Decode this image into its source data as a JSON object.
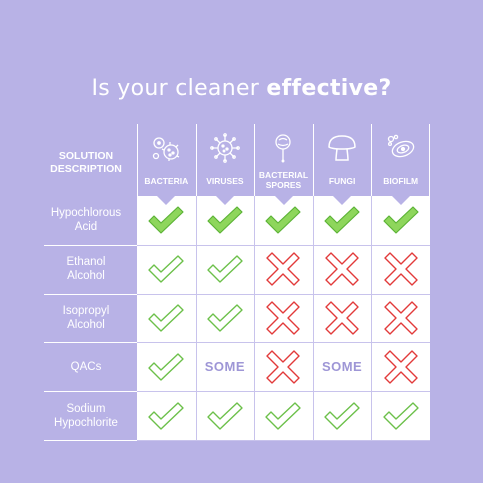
{
  "title": {
    "part1": "Is your cleaner ",
    "part2": "effective?"
  },
  "header": {
    "row_header_line1": "SOLUTION",
    "row_header_line2": "DESCRIPTION",
    "columns": [
      {
        "label1": "BACTERIA",
        "label2": "",
        "icon": "bacteria-icon"
      },
      {
        "label1": "VIRUSES",
        "label2": "",
        "icon": "virus-icon"
      },
      {
        "label1": "BACTERIAL",
        "label2": "SPORES",
        "icon": "spore-icon"
      },
      {
        "label1": "FUNGI",
        "label2": "",
        "icon": "mushroom-icon"
      },
      {
        "label1": "BIOFILM",
        "label2": "",
        "icon": "biofilm-icon"
      }
    ]
  },
  "rows": [
    {
      "line1": "Hypochlorous",
      "line2": "Acid",
      "cells": [
        "check-filled",
        "check-filled",
        "check-filled",
        "check-filled",
        "check-filled"
      ]
    },
    {
      "line1": "Ethanol",
      "line2": "Alcohol",
      "cells": [
        "check",
        "check",
        "cross",
        "cross",
        "cross"
      ]
    },
    {
      "line1": "Isopropyl",
      "line2": "Alcohol",
      "cells": [
        "check",
        "check",
        "cross",
        "cross",
        "cross"
      ]
    },
    {
      "line1": "QACs",
      "line2": "",
      "cells": [
        "check",
        "SOME",
        "cross",
        "SOME",
        "cross"
      ]
    },
    {
      "line1": "Sodium",
      "line2": "Hypochlorite",
      "cells": [
        "check",
        "check",
        "check",
        "check",
        "check"
      ]
    }
  ],
  "colors": {
    "background": "#b8b2e6",
    "check_fill": "#8ed65c",
    "check_stroke": "#5cb336",
    "cross_stroke": "#e23a3a",
    "some_text": "#9e96d6"
  }
}
